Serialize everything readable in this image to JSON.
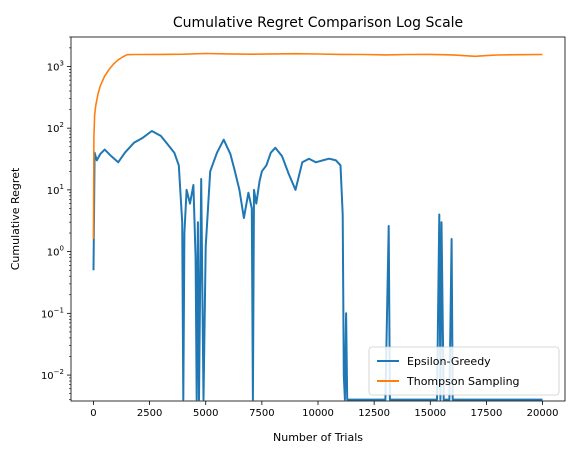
{
  "chart_data": {
    "type": "line",
    "title": "Cumulative Regret Comparison Log Scale",
    "xlabel": "Number of Trials",
    "ylabel": "Cumulative Regret",
    "xlim": [
      -1000,
      21000
    ],
    "ylim": [
      0.0038,
      3000
    ],
    "yscale": "log",
    "x_ticks": [
      0,
      2500,
      5000,
      7500,
      10000,
      12500,
      15000,
      17500,
      20000
    ],
    "x_tick_labels": [
      "0",
      "2500",
      "5000",
      "7500",
      "10000",
      "12500",
      "15000",
      "17500",
      "20000"
    ],
    "y_ticks": [
      0.01,
      0.1,
      1,
      10,
      100,
      1000
    ],
    "y_tick_labels": [
      {
        "base": "10",
        "exp": "−2"
      },
      {
        "base": "10",
        "exp": "−1"
      },
      {
        "base": "10",
        "exp": "0"
      },
      {
        "base": "10",
        "exp": "1"
      },
      {
        "base": "10",
        "exp": "2"
      },
      {
        "base": "10",
        "exp": "3"
      }
    ],
    "grid": false,
    "legend": {
      "position": "lower-right"
    },
    "series": [
      {
        "name": "Epsilon-Greedy",
        "color": "#1f77b4",
        "x": [
          0,
          50,
          150,
          300,
          500,
          800,
          1100,
          1400,
          1800,
          2200,
          2600,
          3000,
          3300,
          3600,
          3800,
          3950,
          4000,
          4050,
          4150,
          4300,
          4450,
          4550,
          4600,
          4650,
          4700,
          4800,
          4900,
          5000,
          5200,
          5500,
          5800,
          6100,
          6300,
          6500,
          6700,
          6900,
          7050,
          7100,
          7150,
          7250,
          7400,
          7500,
          7700,
          7900,
          8100,
          8400,
          8700,
          9000,
          9300,
          9600,
          9900,
          10200,
          10500,
          10800,
          11000,
          11100,
          11150,
          11200,
          11250,
          11300,
          11600,
          12000,
          12500,
          13000,
          13150,
          13200,
          13250,
          13300,
          13600,
          14000,
          14500,
          15000,
          15300,
          15400,
          15450,
          15500,
          15600,
          15700,
          15850,
          15950,
          16000,
          16050,
          16200,
          16800,
          17500,
          18500,
          20000
        ],
        "y": [
          0.5,
          40,
          30,
          38,
          45,
          35,
          28,
          40,
          58,
          70,
          90,
          75,
          55,
          40,
          25,
          3,
          0.004,
          2,
          10,
          6,
          12,
          0.8,
          0.004,
          3,
          0.004,
          15,
          0.004,
          1.2,
          20,
          40,
          65,
          38,
          20,
          10,
          3.5,
          9,
          5,
          0.004,
          10,
          6,
          14,
          20,
          25,
          40,
          48,
          35,
          18,
          10,
          28,
          32,
          28,
          30,
          32,
          30,
          25,
          4,
          0.01,
          0.004,
          0.1,
          0.004,
          0.004,
          0.004,
          0.004,
          0.004,
          2.6,
          0.004,
          0.004,
          0.004,
          0.004,
          0.004,
          0.004,
          0.004,
          0.004,
          4,
          0.004,
          3,
          0.004,
          0.004,
          0.004,
          1.6,
          0.004,
          0.004,
          0.004,
          0.004,
          0.004,
          0.004,
          0.004
        ]
      },
      {
        "name": "Thompson Sampling",
        "color": "#ff7f0e",
        "x": [
          0,
          20,
          50,
          100,
          200,
          300,
          500,
          700,
          900,
          1100,
          1300,
          1500,
          1800,
          2200,
          3000,
          4000,
          5000,
          6000,
          7000,
          8000,
          9000,
          10000,
          11000,
          12000,
          13000,
          14000,
          15000,
          16000,
          17000,
          17500,
          18000,
          19000,
          20000
        ],
        "y": [
          1.6,
          70,
          160,
          230,
          350,
          480,
          700,
          900,
          1100,
          1280,
          1420,
          1550,
          1560,
          1560,
          1570,
          1580,
          1620,
          1600,
          1580,
          1600,
          1610,
          1590,
          1570,
          1560,
          1540,
          1560,
          1570,
          1540,
          1460,
          1500,
          1530,
          1550,
          1560
        ]
      }
    ]
  }
}
